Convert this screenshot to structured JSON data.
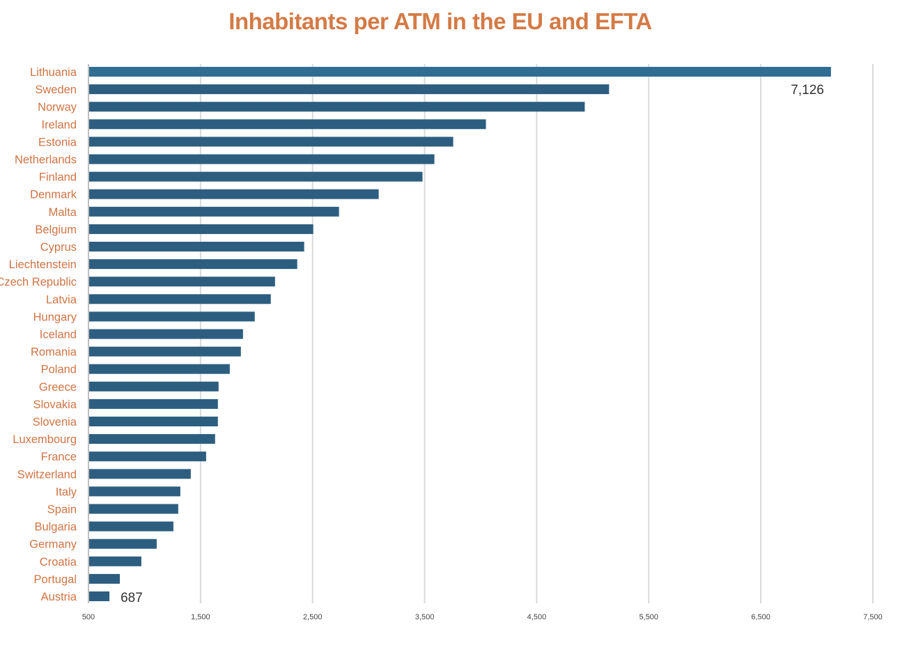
{
  "chart_data": {
    "type": "bar",
    "orientation": "horizontal",
    "title": "Inhabitants per ATM in the EU and EFTA",
    "xlabel": "",
    "ylabel": "",
    "xlim": [
      500,
      7500
    ],
    "x_ticks": [
      500,
      1500,
      2500,
      3500,
      4500,
      5500,
      6500,
      7500
    ],
    "x_tick_labels": [
      "500",
      "1,500",
      "2,500",
      "3,500",
      "4,500",
      "5,500",
      "6,500",
      "7,500"
    ],
    "grid": "vertical",
    "categories": [
      "Lithuania",
      "Sweden",
      "Norway",
      "Ireland",
      "Estonia",
      "Netherlands",
      "Finland",
      "Denmark",
      "Malta",
      "Belgium",
      "Cyprus",
      "Liechtenstein",
      "Czech Republic",
      "Latvia",
      "Hungary",
      "Iceland",
      "Romania",
      "Poland",
      "Greece",
      "Slovakia",
      "Slovenia",
      "Luxembourg",
      "France",
      "Switzerland",
      "Italy",
      "Spain",
      "Bulgaria",
      "Germany",
      "Croatia",
      "Portugal",
      "Austria"
    ],
    "values": [
      7126,
      5146,
      4929,
      4047,
      3755,
      3587,
      3481,
      3090,
      2736,
      2506,
      2425,
      2363,
      2165,
      2127,
      1984,
      1879,
      1860,
      1761,
      1661,
      1655,
      1655,
      1630,
      1550,
      1413,
      1320,
      1301,
      1258,
      1109,
      972,
      780,
      687
    ],
    "data_labels": [
      {
        "category": "Lithuania",
        "text": "7,126"
      },
      {
        "category": "Austria",
        "text": "687"
      }
    ],
    "colors": {
      "bar": "#2d5e80",
      "highlight": "#2f6d93",
      "title": "#d47a45",
      "category_label": "#cf7444",
      "grid": "#d9d9d9"
    }
  }
}
